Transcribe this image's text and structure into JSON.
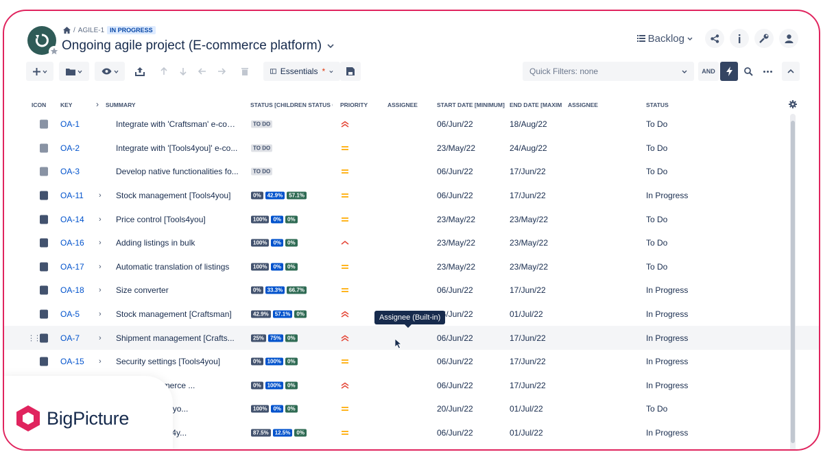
{
  "header": {
    "breadcrumb_key": "AGILE-1",
    "breadcrumb_status": "IN PROGRESS",
    "title": "Ongoing agile project (E-commerce platform)",
    "view_label": "Backlog"
  },
  "toolbar": {
    "view_name": "Essentials",
    "view_modified_mark": "*",
    "quick_filters": "Quick Filters: none",
    "and_label": "AND"
  },
  "columns": {
    "icon": "ICON",
    "key": "KEY",
    "summary": "SUMMARY",
    "status_children": "STATUS [CHILDREN STATUS CA",
    "priority": "PRIORITY",
    "assignee": "ASSIGNEE",
    "start_date": "START DATE [MINIMUM]",
    "end_date": "END DATE [MAXIMI",
    "assignee2": "ASSIGNEE",
    "status": "STATUS"
  },
  "rows": [
    {
      "key": "OA-1",
      "summary": "Integrate with 'Craftsman' e-com...",
      "children": "TO DO",
      "priority": "high",
      "start": "06/Jun/22",
      "end": "18/Aug/22",
      "status": "To Do"
    },
    {
      "key": "OA-2",
      "summary": "Integrate with '[Tools4you]' e-co...",
      "children": "TO DO",
      "priority": "medium",
      "start": "23/May/22",
      "end": "24/Aug/22",
      "status": "To Do"
    },
    {
      "key": "OA-3",
      "summary": "Develop native functionalities fo...",
      "children": "TO DO",
      "priority": "medium",
      "start": "06/Jun/22",
      "end": "17/Jun/22",
      "status": "To Do"
    },
    {
      "key": "OA-11",
      "summary": "Stock management [Tools4you]",
      "children": [
        "0%",
        "42.9%",
        "57.1%"
      ],
      "priority": "medium",
      "start": "06/Jun/22",
      "end": "17/Jun/22",
      "status": "In Progress"
    },
    {
      "key": "OA-14",
      "summary": "Price control [Tools4you]",
      "children": [
        "100%",
        "0%",
        "0%"
      ],
      "priority": "medium",
      "start": "23/May/22",
      "end": "23/May/22",
      "status": "To Do"
    },
    {
      "key": "OA-16",
      "summary": "Adding listings in bulk",
      "children": [
        "100%",
        "0%",
        "0%"
      ],
      "priority": "high-single",
      "start": "23/May/22",
      "end": "23/May/22",
      "status": "To Do"
    },
    {
      "key": "OA-17",
      "summary": "Automatic translation of listings",
      "children": [
        "100%",
        "0%",
        "0%"
      ],
      "priority": "medium",
      "start": "23/May/22",
      "end": "23/May/22",
      "status": "To Do"
    },
    {
      "key": "OA-18",
      "summary": "Size converter",
      "children": [
        "0%",
        "33.3%",
        "66.7%"
      ],
      "priority": "medium",
      "start": "06/Jun/22",
      "end": "17/Jun/22",
      "status": "In Progress"
    },
    {
      "key": "OA-5",
      "summary": "Stock management [Craftsman]",
      "children": [
        "42.9%",
        "57.1%",
        "0%"
      ],
      "priority": "high",
      "start": "06/Jun/22",
      "end": "01/Jul/22",
      "status": "In Progress"
    },
    {
      "key": "OA-7",
      "summary": "Shipment management [Crafts...",
      "children": [
        "25%",
        "75%",
        "0%"
      ],
      "priority": "high",
      "start": "06/Jun/22",
      "end": "17/Jun/22",
      "status": "In Progress"
    },
    {
      "key": "OA-15",
      "summary": "Security settings [Tools4you]",
      "children": [
        "0%",
        "100%",
        "0%"
      ],
      "priority": "medium",
      "start": "06/Jun/22",
      "end": "17/Jun/22",
      "status": "In Progress"
    },
    {
      "key": "",
      "summary": "of two e-commerce ...",
      "children": [
        "0%",
        "100%",
        "0%"
      ],
      "priority": "high",
      "start": "06/Jun/22",
      "end": "17/Jun/22",
      "status": "In Progress"
    },
    {
      "key": "",
      "summary": "nication [Tools4yo...",
      "children": [
        "100%",
        "0%",
        "0%"
      ],
      "priority": "medium",
      "start": "20/Jun/22",
      "end": "01/Jul/22",
      "status": "To Do"
    },
    {
      "key": "",
      "summary": "agement [Tools4y...",
      "children": [
        "87.5%",
        "12.5%",
        "0%"
      ],
      "priority": "medium",
      "start": "06/Jun/22",
      "end": "01/Jul/22",
      "status": "In Progress"
    }
  ],
  "tooltip": "Assignee (Built-in)",
  "brand": {
    "name": "BigPicture",
    "color": "#e0245e"
  },
  "colors": {
    "link": "#0052cc",
    "todo": "#42526e",
    "in_progress": "#0052cc",
    "done": "#2f6b54"
  }
}
